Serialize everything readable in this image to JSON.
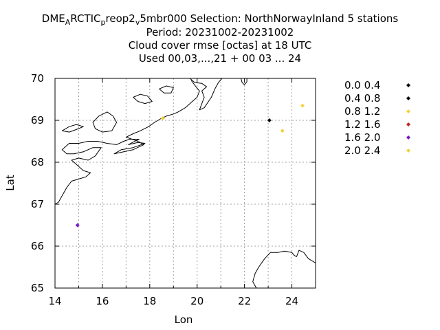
{
  "header": {
    "line1_a": "DME",
    "line1_sub1": "A",
    "line1_b": "RCTIC",
    "line1_sub2": "p",
    "line1_c": "reop2",
    "line1_sub3": "v",
    "line1_d": "5mbr000   Selection: NorthNorwayInland      5 stations",
    "period": "Period: 20231002-20231002",
    "subtitle": "Cloud cover rmse [octas] at  18 UTC",
    "used": "Used  00,03,...,21  + 00 03 ... 24"
  },
  "chart_data": {
    "type": "scatter",
    "xlabel": "Lon",
    "ylabel": "Lat",
    "xlim": [
      14,
      25
    ],
    "ylim": [
      65,
      70
    ],
    "xticks": [
      "14",
      "16",
      "18",
      "20",
      "22",
      "24"
    ],
    "yticks": [
      "65",
      "66",
      "67",
      "68",
      "69",
      "70"
    ],
    "grid": true,
    "legend_position": "right",
    "legend": [
      {
        "label": "0.0 0.4",
        "color": "#000000"
      },
      {
        "label": "0.4 0.8",
        "color": "#000000"
      },
      {
        "label": "0.8 1.2",
        "color": "#f2d23a"
      },
      {
        "label": "1.2 1.6",
        "color": "#c0281e"
      },
      {
        "label": "1.6 2.0",
        "color": "#7b16c8"
      },
      {
        "label": "2.0 2.4",
        "color": "#f2d23a"
      }
    ],
    "points": [
      {
        "lon": 23.05,
        "lat": 69.0,
        "color": "#000000"
      },
      {
        "lon": 18.55,
        "lat": 69.05,
        "color": "#f2d23a"
      },
      {
        "lon": 23.6,
        "lat": 68.75,
        "color": "#f2d23a"
      },
      {
        "lon": 24.45,
        "lat": 69.35,
        "color": "#f2d23a"
      },
      {
        "lon": 14.95,
        "lat": 66.5,
        "color": "#7b16c8"
      }
    ],
    "coastlines": [
      [
        [
          14.0,
          67.0
        ],
        [
          14.15,
          67.05
        ],
        [
          14.3,
          67.2
        ],
        [
          14.5,
          67.4
        ],
        [
          14.7,
          67.55
        ],
        [
          15.0,
          67.6
        ],
        [
          15.3,
          67.65
        ],
        [
          15.5,
          67.75
        ],
        [
          15.2,
          67.8
        ],
        [
          14.9,
          67.95
        ],
        [
          14.7,
          68.05
        ],
        [
          15.0,
          68.1
        ],
        [
          15.4,
          68.05
        ],
        [
          15.7,
          68.15
        ],
        [
          15.95,
          68.35
        ],
        [
          15.6,
          68.35
        ],
        [
          15.2,
          68.25
        ],
        [
          14.8,
          68.2
        ],
        [
          14.5,
          68.2
        ],
        [
          14.3,
          68.3
        ],
        [
          14.6,
          68.45
        ],
        [
          15.0,
          68.45
        ],
        [
          15.4,
          68.5
        ],
        [
          15.8,
          68.5
        ],
        [
          16.2,
          68.45
        ],
        [
          16.6,
          68.42
        ],
        [
          16.9,
          68.5
        ],
        [
          17.15,
          68.55
        ],
        [
          17.55,
          68.55
        ],
        [
          17.3,
          68.48
        ],
        [
          17.1,
          68.42
        ],
        [
          17.5,
          68.47
        ],
        [
          17.8,
          68.45
        ],
        [
          17.3,
          68.35
        ],
        [
          16.8,
          68.3
        ],
        [
          16.5,
          68.2
        ],
        [
          16.9,
          68.25
        ],
        [
          17.3,
          68.3
        ],
        [
          17.75,
          68.42
        ],
        [
          17.5,
          68.5
        ],
        [
          17.0,
          68.6
        ],
        [
          17.3,
          68.68
        ],
        [
          17.6,
          68.75
        ],
        [
          17.95,
          68.85
        ],
        [
          18.2,
          68.95
        ],
        [
          18.5,
          69.05
        ],
        [
          18.7,
          69.1
        ],
        [
          19.0,
          69.15
        ],
        [
          19.2,
          69.2
        ],
        [
          19.5,
          69.3
        ],
        [
          19.8,
          69.45
        ],
        [
          20.0,
          69.55
        ],
        [
          20.1,
          69.7
        ],
        [
          19.95,
          69.8
        ],
        [
          19.75,
          69.95
        ]
      ],
      [
        [
          16.2,
          69.2
        ],
        [
          16.45,
          69.1
        ],
        [
          16.6,
          68.95
        ],
        [
          16.4,
          68.75
        ],
        [
          16.0,
          68.72
        ],
        [
          15.7,
          68.8
        ],
        [
          15.6,
          68.95
        ],
        [
          15.85,
          69.1
        ],
        [
          16.2,
          69.2
        ]
      ],
      [
        [
          14.3,
          68.75
        ],
        [
          14.6,
          68.85
        ],
        [
          14.9,
          68.9
        ],
        [
          15.2,
          68.85
        ],
        [
          14.9,
          68.78
        ],
        [
          14.6,
          68.72
        ],
        [
          14.3,
          68.75
        ]
      ],
      [
        [
          17.3,
          69.55
        ],
        [
          17.6,
          69.62
        ],
        [
          17.9,
          69.58
        ],
        [
          18.1,
          69.45
        ],
        [
          17.8,
          69.4
        ],
        [
          17.5,
          69.45
        ],
        [
          17.3,
          69.55
        ]
      ],
      [
        [
          18.4,
          69.75
        ],
        [
          18.7,
          69.82
        ],
        [
          19.0,
          69.78
        ],
        [
          18.9,
          69.65
        ],
        [
          18.6,
          69.65
        ],
        [
          18.4,
          69.75
        ]
      ],
      [
        [
          19.7,
          70.0
        ],
        [
          19.9,
          69.9
        ],
        [
          20.2,
          69.88
        ],
        [
          20.4,
          69.8
        ],
        [
          20.2,
          69.7
        ],
        [
          20.3,
          69.55
        ],
        [
          20.2,
          69.4
        ],
        [
          20.1,
          69.25
        ],
        [
          20.3,
          69.3
        ],
        [
          20.6,
          69.55
        ],
        [
          20.75,
          69.75
        ],
        [
          20.9,
          69.9
        ],
        [
          21.05,
          70.0
        ]
      ],
      [
        [
          21.85,
          70.0
        ],
        [
          21.9,
          69.9
        ],
        [
          22.0,
          69.85
        ],
        [
          22.1,
          69.92
        ],
        [
          22.1,
          70.0
        ]
      ],
      [
        [
          22.5,
          65.0
        ],
        [
          22.35,
          65.15
        ],
        [
          22.45,
          65.35
        ],
        [
          22.6,
          65.5
        ],
        [
          22.85,
          65.7
        ],
        [
          23.1,
          65.85
        ],
        [
          23.4,
          65.85
        ],
        [
          23.7,
          65.88
        ],
        [
          24.0,
          65.85
        ],
        [
          24.1,
          65.78
        ],
        [
          24.2,
          65.75
        ],
        [
          24.3,
          65.9
        ],
        [
          24.5,
          65.85
        ],
        [
          24.7,
          65.7
        ],
        [
          25.0,
          65.6
        ]
      ]
    ]
  }
}
